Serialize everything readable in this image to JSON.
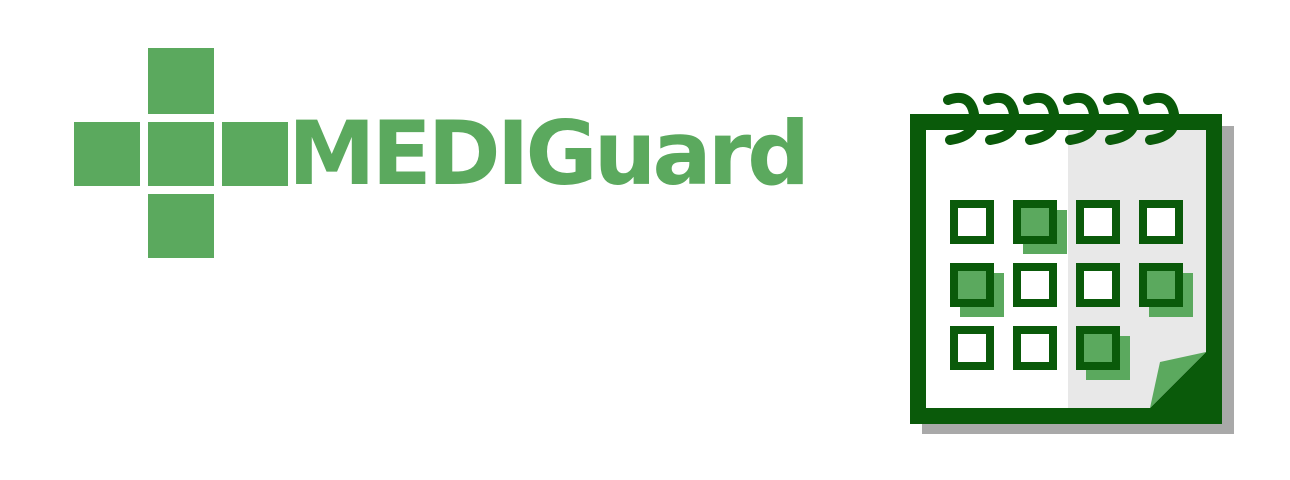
{
  "logo": {
    "wordmark": "MEDIGuard",
    "icon": "medical-cross-icon",
    "color": "#5ba95e"
  },
  "calendar": {
    "icon": "calendar-icon",
    "frame_color": "#0a5a0a",
    "accent_color": "#5ba95e",
    "rows": [
      [
        false,
        true,
        false,
        false
      ],
      [
        true,
        false,
        false,
        true
      ],
      [
        false,
        false,
        true
      ]
    ]
  }
}
